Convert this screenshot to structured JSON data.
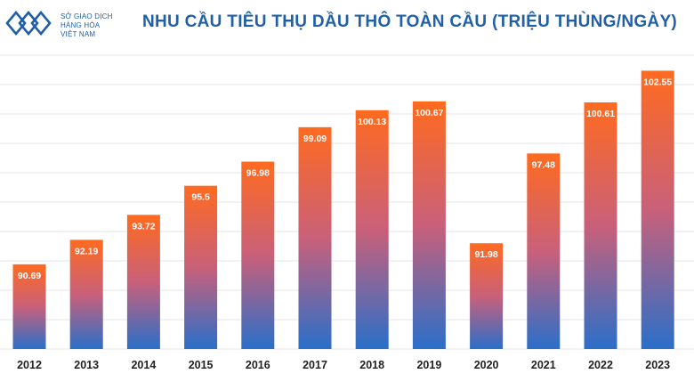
{
  "brand": {
    "name_lines": [
      "SỞ GIAO DỊCH",
      "HÀNG HÓA",
      "VIỆT NAM"
    ],
    "logo_icon": "diamond-chain-logo",
    "color": "#1f5fa8"
  },
  "chart_data": {
    "type": "bar",
    "title": "NHU CẦU TIÊU THỤ DẦU THÔ TOÀN CẦU (TRIỆU THÙNG/NGÀY)",
    "xlabel": "",
    "ylabel": "",
    "categories": [
      "2012",
      "2013",
      "2014",
      "2015",
      "2016",
      "2017",
      "2018",
      "2019",
      "2020",
      "2021",
      "2022",
      "2023"
    ],
    "values": [
      90.69,
      92.19,
      93.72,
      95.5,
      96.98,
      99.09,
      100.13,
      100.67,
      91.98,
      97.48,
      100.61,
      102.55
    ],
    "labels": [
      "90.69",
      "92.19",
      "93.72",
      "95.5",
      "96.98",
      "99.09",
      "100.13",
      "100.67",
      "91.98",
      "97.48",
      "100.61",
      "102.55"
    ],
    "ylim": [
      85.5,
      103.5
    ],
    "grid": true,
    "colors": {
      "bar_top": "#ff6a1f",
      "bar_mid": "#c9607a",
      "bar_bottom": "#2a6fc9",
      "grid": "#e6e6e6"
    }
  }
}
